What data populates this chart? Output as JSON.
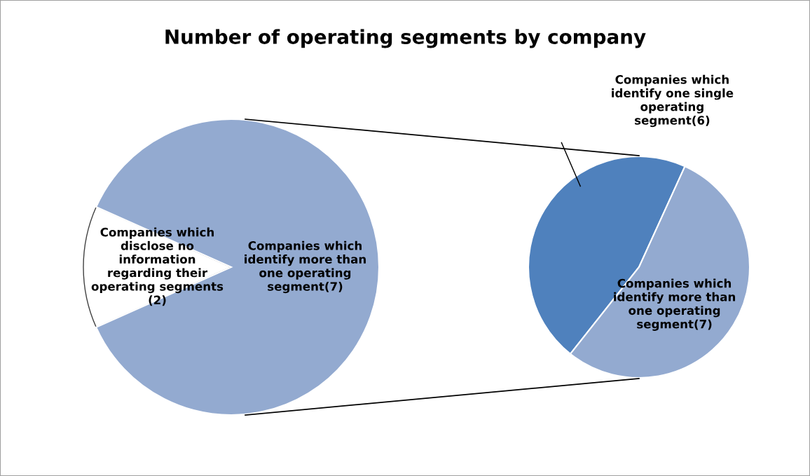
{
  "chart_data": [
    {
      "type": "pie",
      "title": "Number of operating segments by company",
      "categories": [
        "Companies which\ndisclose no\ninformation\nregarding their\noperating segments\n(2)",
        "Companies which\nidentify more than\none operating\nsegment(7)"
      ],
      "values": [
        2,
        13
      ],
      "colors": [
        "#ffffff",
        "#93aad0"
      ]
    },
    {
      "type": "pie",
      "categories": [
        "Companies which\nidentify one single\noperating\nsegment(6)",
        "Companies which\nidentify more than\none operating\nsegment(7)"
      ],
      "values": [
        6,
        7
      ],
      "colors": [
        "#4f81bd",
        "#93aad0"
      ]
    }
  ]
}
